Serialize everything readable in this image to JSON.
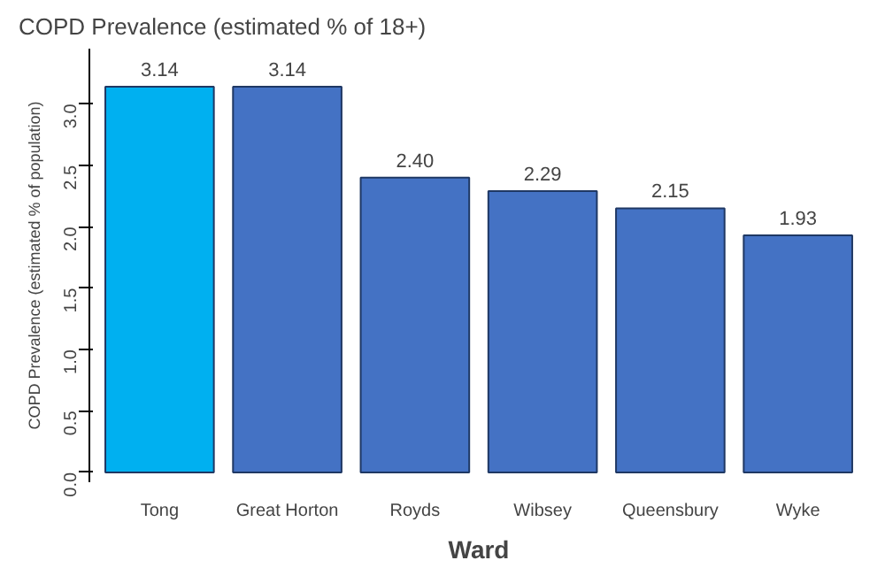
{
  "chart_data": {
    "type": "bar",
    "title": "COPD Prevalence (estimated % of 18+)",
    "xlabel": "Ward",
    "ylabel": "COPD Prevalence (estimated % of population)",
    "categories": [
      "Tong",
      "Great Horton",
      "Royds",
      "Wibsey",
      "Queensbury",
      "Wyke"
    ],
    "values": [
      3.14,
      3.14,
      2.4,
      2.29,
      2.15,
      1.93
    ],
    "colors": [
      "#00b0f0",
      "#4472c4",
      "#4472c4",
      "#4472c4",
      "#4472c4",
      "#4472c4"
    ],
    "ylim": [
      -0.08,
      3.45
    ],
    "value_labels": [
      "3.14",
      "3.14",
      "2.40",
      "2.29",
      "2.15",
      "1.93"
    ],
    "yticks": [
      {
        "value": 0,
        "label": "0.0"
      },
      0.5,
      {
        "value": 1,
        "label": "1.0"
      },
      1.5,
      {
        "value": 2,
        "label": "2.0"
      },
      2.5,
      {
        "value": 3,
        "label": "3.0"
      }
    ],
    "grid": false
  }
}
